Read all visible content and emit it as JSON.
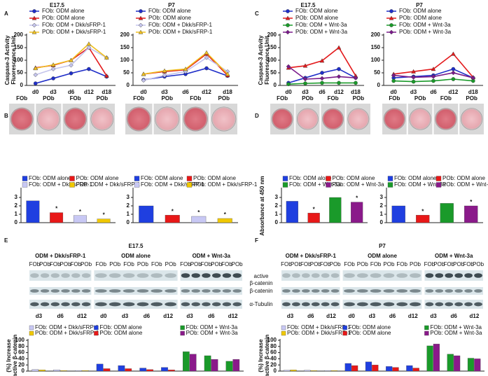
{
  "figure": {
    "panel_labels": [
      "A",
      "B",
      "C",
      "D",
      "E",
      "F"
    ],
    "photos": [
      [
        "FOb",
        "POb",
        "FOb",
        "POb"
      ],
      [
        "FOb",
        "POb",
        "FOb",
        "POb"
      ],
      [
        "FOb",
        "POb",
        "FOb",
        "POb"
      ],
      [
        "FOb",
        "POb",
        "FOb",
        "POb"
      ]
    ],
    "blots": [
      {
        "title": "E17.5",
        "groups": [
          "ODM + Dkk/sFRP-1",
          "ODM alone",
          "ODM + Wnt-3a"
        ],
        "lanes": [
          [
            "FOb",
            "POb",
            "FOb",
            "POb",
            "FOb",
            "POb"
          ],
          [
            "FOb",
            "POb",
            "FOb",
            "POb",
            "FOb",
            "POb"
          ],
          [
            "FOb",
            "POb",
            "FOb",
            "POb",
            "FOb",
            "POb"
          ]
        ]
      },
      {
        "title": "P7",
        "groups": [
          "ODM + Dkk/sFRP-1",
          "ODM alone",
          "ODM + Wnt-3a"
        ],
        "lanes": [
          [
            "FOb",
            "POb",
            "FOb",
            "POb",
            "FOb",
            "POb"
          ],
          [
            "FOb",
            "POb",
            "FOb",
            "POb",
            "FOb",
            "POb"
          ],
          [
            "FOb",
            "POb",
            "FOb",
            "POb",
            "FOb",
            "POb"
          ]
        ]
      }
    ],
    "row_labels": [
      "active",
      "β-catenin",
      "β-catenin",
      "α-Tubulin"
    ]
  },
  "chart_data": [
    {
      "type": "line",
      "title": "E17.5",
      "ylabel": [
        "Caspase-3 Activity",
        "Fluorescence Unit"
      ],
      "categories": [
        "d0",
        "d3",
        "d6",
        "d12",
        "d18"
      ],
      "ylim": [
        0,
        200
      ],
      "yticks": [
        0,
        50,
        100,
        150,
        200
      ],
      "series": [
        {
          "name": "FOb: ODM alone",
          "color": "#1f2ec8",
          "marker": "circle",
          "values": [
            8,
            28,
            48,
            65,
            35
          ]
        },
        {
          "name": "POb: ODM alone",
          "color": "#e31a1c",
          "marker": "triangle",
          "values": [
            70,
            80,
            100,
            150,
            38
          ]
        },
        {
          "name": "FOb: ODM + Dkk/sFRP-1",
          "color": "#c4c4ec",
          "marker": "diamond",
          "values": [
            42,
            65,
            80,
            150,
            110
          ]
        },
        {
          "name": "POb: ODM + Dkk/sFRP-1",
          "color": "#f0c020",
          "marker": "triangle",
          "values": [
            68,
            82,
            100,
            165,
            110
          ]
        }
      ]
    },
    {
      "type": "line",
      "title": "P7",
      "categories": [
        "d0",
        "d3",
        "d6",
        "d12",
        "d18"
      ],
      "ylim": [
        0,
        200
      ],
      "yticks": [
        0,
        50,
        100,
        150,
        200
      ],
      "series": [
        {
          "name": "FOb: ODM alone",
          "color": "#1f2ec8",
          "marker": "circle",
          "values": [
            22,
            35,
            45,
            68,
            38
          ]
        },
        {
          "name": "POb: ODM alone",
          "color": "#e31a1c",
          "marker": "triangle",
          "values": [
            45,
            55,
            62,
            125,
            40
          ]
        },
        {
          "name": "FOb: ODM + Dkk/sFRP-1",
          "color": "#c4c4ec",
          "marker": "diamond",
          "values": [
            20,
            40,
            55,
            110,
            55
          ]
        },
        {
          "name": "POb: ODM + Dkk/sFRP-1",
          "color": "#f0c020",
          "marker": "triangle",
          "values": [
            45,
            58,
            65,
            130,
            45
          ]
        }
      ]
    },
    {
      "type": "line",
      "title": "E17.5",
      "ylabel": [
        "Caspase-3 Activity",
        "Fluorescence Unit"
      ],
      "categories": [
        "d0",
        "d3",
        "d6",
        "d12",
        "d18"
      ],
      "ylim": [
        0,
        200
      ],
      "yticks": [
        0,
        50,
        100,
        150,
        200
      ],
      "series": [
        {
          "name": "FOb: ODM alone",
          "color": "#1f2ec8",
          "marker": "circle",
          "values": [
            10,
            30,
            50,
            65,
            30
          ]
        },
        {
          "name": "POb: ODM alone",
          "color": "#e31a1c",
          "marker": "triangle",
          "values": [
            70,
            78,
            98,
            150,
            38
          ]
        },
        {
          "name": "FOb: ODM + Wnt-3a",
          "color": "#1a9a2a",
          "marker": "circle",
          "values": [
            5,
            8,
            10,
            10,
            10
          ]
        },
        {
          "name": "POb: ODM + Wnt-3a",
          "color": "#7a1a8a",
          "marker": "diamond",
          "values": [
            75,
            25,
            28,
            35,
            30
          ]
        }
      ]
    },
    {
      "type": "line",
      "title": "P7",
      "categories": [
        "d0",
        "d3",
        "d6",
        "d12",
        "d18"
      ],
      "ylim": [
        0,
        200
      ],
      "yticks": [
        0,
        50,
        100,
        150,
        200
      ],
      "series": [
        {
          "name": "FOb: ODM alone",
          "color": "#1f2ec8",
          "marker": "circle",
          "values": [
            30,
            35,
            40,
            65,
            30
          ]
        },
        {
          "name": "POb: ODM alone",
          "color": "#e31a1c",
          "marker": "triangle",
          "values": [
            45,
            55,
            65,
            125,
            32
          ]
        },
        {
          "name": "FOb: ODM + Wnt-3a",
          "color": "#1a9a2a",
          "marker": "circle",
          "values": [
            18,
            15,
            18,
            25,
            18
          ]
        },
        {
          "name": "POb: ODM + Wnt-3a",
          "color": "#7a1a8a",
          "marker": "diamond",
          "values": [
            40,
            32,
            35,
            50,
            30
          ]
        }
      ]
    },
    {
      "type": "bar",
      "ylim": [
        0,
        4
      ],
      "yticks": [
        0,
        1,
        2,
        3
      ],
      "series": [
        {
          "name": "FOb: ODM alone",
          "color": "#1f3fe0",
          "values": [
            2.6
          ]
        },
        {
          "name": "POb: ODM alone",
          "color": "#e81818",
          "values": [
            1.2
          ],
          "annotation": "*"
        },
        {
          "name": "FOb: ODM + Dkk/sFRP-1",
          "color": "#c8c8f4",
          "values": [
            0.85
          ],
          "annotation": "*"
        },
        {
          "name": "POb: ODM + Dkk/sFRP-1",
          "color": "#f0c800",
          "values": [
            0.45
          ],
          "annotation": "*"
        }
      ]
    },
    {
      "type": "bar",
      "ylim": [
        0,
        4
      ],
      "yticks": [
        0,
        1,
        2,
        3
      ],
      "series": [
        {
          "name": "FOb: ODM alone",
          "color": "#1f3fe0",
          "values": [
            2.0
          ]
        },
        {
          "name": "POb: ODM alone",
          "color": "#e81818",
          "values": [
            0.9
          ],
          "annotation": "*"
        },
        {
          "name": "FOb: ODM + Dkk/sFRP-1",
          "color": "#c8c8f4",
          "values": [
            0.75
          ],
          "annotation": "*"
        },
        {
          "name": "POb: ODM + Dkk/sFRP-1",
          "color": "#f0c800",
          "values": [
            0.5
          ],
          "annotation": "*"
        }
      ]
    },
    {
      "type": "bar",
      "ylabel": [
        "Absorbance at 450 nm"
      ],
      "ylim": [
        0,
        4
      ],
      "yticks": [
        0,
        1,
        2,
        3
      ],
      "series": [
        {
          "name": "FOb: ODM alone",
          "color": "#1f3fe0",
          "values": [
            2.55
          ]
        },
        {
          "name": "POb: ODM alone",
          "color": "#e81818",
          "values": [
            1.15
          ],
          "annotation": "*"
        },
        {
          "name": "FOb: ODM + Wnt-3a",
          "color": "#1a9a2a",
          "values": [
            3.0
          ]
        },
        {
          "name": "POb: ODM + Wnt-3a",
          "color": "#8a1a8a",
          "values": [
            2.45
          ],
          "annotation": "*"
        }
      ]
    },
    {
      "type": "bar",
      "ylim": [
        0,
        4
      ],
      "yticks": [
        0,
        1,
        2,
        3
      ],
      "series": [
        {
          "name": "FOb: ODM alone",
          "color": "#1f3fe0",
          "values": [
            2.0
          ]
        },
        {
          "name": "POb: ODM alone",
          "color": "#e81818",
          "values": [
            0.9
          ],
          "annotation": "*"
        },
        {
          "name": "FOb: ODM + Wnt-3a",
          "color": "#1a9a2a",
          "values": [
            2.3
          ]
        },
        {
          "name": "POb: ODM + Wnt-3a",
          "color": "#8a1a8a",
          "values": [
            2.0
          ],
          "annotation": "*"
        }
      ]
    },
    {
      "type": "bar",
      "ylabel": [
        "(%) Increase",
        "active β-catenin"
      ],
      "categories": [
        "d3",
        "d6",
        "d12",
        "d0",
        "d3",
        "d6",
        "d12",
        "d3",
        "d6",
        "d12"
      ],
      "ylim": [
        0,
        100
      ],
      "yticks": [
        0,
        20,
        40,
        60,
        80,
        100
      ],
      "series": [
        {
          "name": "FOb: ODM + Dkk/sFRP-1",
          "color": "#c8c8f4",
          "values": [
            5,
            4,
            2,
            null,
            null,
            null,
            null,
            null,
            null,
            null
          ]
        },
        {
          "name": "POb: ODM + Dkk/sFRP-1",
          "color": "#f0c800",
          "values": [
            4,
            2,
            2,
            null,
            null,
            null,
            null,
            null,
            null,
            null
          ]
        },
        {
          "name": "FOb: ODM alone",
          "color": "#1f3fe0",
          "values": [
            null,
            null,
            null,
            23,
            18,
            10,
            12,
            null,
            null,
            null
          ]
        },
        {
          "name": "POb: ODM alone",
          "color": "#e81818",
          "values": [
            null,
            null,
            null,
            8,
            8,
            5,
            4,
            null,
            null,
            null
          ]
        },
        {
          "name": "FOb: ODM + Wnt-3a",
          "color": "#1a9a2a",
          "values": [
            null,
            null,
            null,
            null,
            null,
            null,
            null,
            63,
            50,
            32
          ]
        },
        {
          "name": "POb: ODM + Wnt-3a",
          "color": "#8a1a8a",
          "values": [
            null,
            null,
            null,
            null,
            null,
            null,
            null,
            55,
            38,
            38
          ]
        }
      ]
    },
    {
      "type": "bar",
      "ylabel": [
        "(%) Increase",
        "active β-catenin"
      ],
      "categories": [
        "d3",
        "d6",
        "d12",
        "d0",
        "d3",
        "d6",
        "d12",
        "d3",
        "d6",
        "d12"
      ],
      "ylim": [
        0,
        100
      ],
      "yticks": [
        0,
        20,
        40,
        60,
        80,
        100
      ],
      "series": [
        {
          "name": "FOb: ODM + Dkk/sFRP-1",
          "color": "#c8c8f4",
          "values": [
            3,
            3,
            2,
            null,
            null,
            null,
            null,
            null,
            null,
            null
          ]
        },
        {
          "name": "POb: ODM + Dkk/sFRP-1",
          "color": "#f0c800",
          "values": [
            4,
            2,
            2,
            null,
            null,
            null,
            null,
            null,
            null,
            null
          ]
        },
        {
          "name": "FOb: ODM alone",
          "color": "#1f3fe0",
          "values": [
            null,
            null,
            null,
            25,
            30,
            15,
            18,
            null,
            null,
            null
          ]
        },
        {
          "name": "POb: ODM alone",
          "color": "#e81818",
          "values": [
            null,
            null,
            null,
            18,
            20,
            12,
            10,
            null,
            null,
            null
          ]
        },
        {
          "name": "FOb: ODM + Wnt-3a",
          "color": "#1a9a2a",
          "values": [
            null,
            null,
            null,
            null,
            null,
            null,
            null,
            82,
            55,
            42
          ]
        },
        {
          "name": "POb: ODM + Wnt-3a",
          "color": "#8a1a8a",
          "values": [
            null,
            null,
            null,
            null,
            null,
            null,
            null,
            88,
            50,
            40
          ]
        }
      ]
    }
  ]
}
